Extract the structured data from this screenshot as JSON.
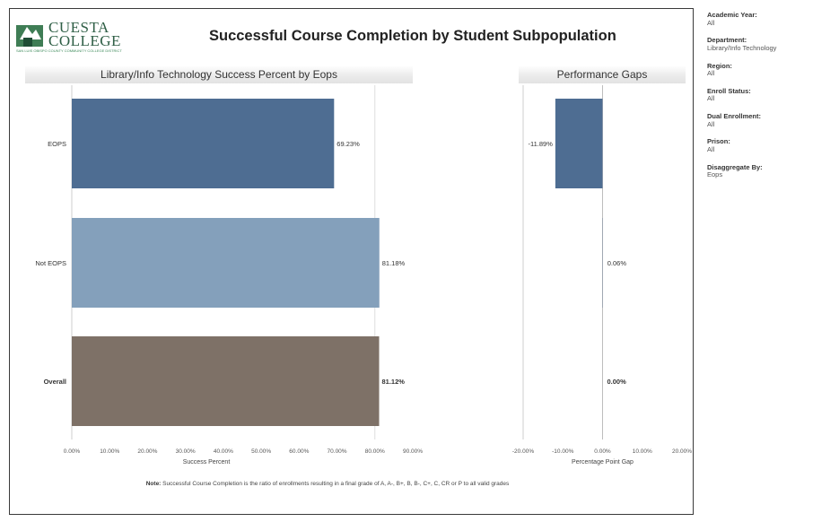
{
  "header": {
    "logo_line1": "CUESTA",
    "logo_line2": "COLLEGE",
    "logo_tagline": "SAN LUIS OBISPO COUNTY COMMUNITY COLLEGE DISTRICT",
    "title": "Successful Course Completion by Student Subpopulation"
  },
  "colors": {
    "eops": "#4e6d92",
    "not_eops": "#84a0bb",
    "overall": "#7e7167",
    "gap": "#4e6d92"
  },
  "chart_data": [
    {
      "type": "bar",
      "orientation": "horizontal",
      "title": "Library/Info Technology Success Percent by Eops",
      "categories": [
        "EOPS",
        "Not EOPS",
        "Overall"
      ],
      "values": [
        69.23,
        81.18,
        81.12
      ],
      "value_labels": [
        "69.23%",
        "81.18%",
        "81.12%"
      ],
      "xlabel": "Success Percent",
      "xlim": [
        0,
        90
      ],
      "ticks": [
        0,
        10,
        20,
        30,
        40,
        50,
        60,
        70,
        80,
        90
      ],
      "tick_labels": [
        "0.00%",
        "10.00%",
        "20.00%",
        "30.00%",
        "40.00%",
        "50.00%",
        "60.00%",
        "70.00%",
        "80.00%",
        "90.00%"
      ]
    },
    {
      "type": "bar",
      "orientation": "horizontal",
      "title": "Performance Gaps",
      "categories": [
        "EOPS",
        "Not EOPS",
        "Overall"
      ],
      "values": [
        -11.89,
        0.06,
        0.0
      ],
      "value_labels": [
        "-11.89%",
        "0.06%",
        "0.00%"
      ],
      "xlabel": "Percentage Point Gap",
      "xlim": [
        -20,
        20
      ],
      "ticks": [
        -20,
        -10,
        0,
        10,
        20
      ],
      "tick_labels": [
        "-20.00%",
        "-10.00%",
        "0.00%",
        "10.00%",
        "20.00%"
      ]
    }
  ],
  "note": {
    "prefix": "Note:",
    "text": "Successful Course Completion is the ratio of enrollments resulting in a final grade of A, A-, B+, B, B-, C+, C, CR or P to all valid grades"
  },
  "filters": [
    {
      "label": "Academic Year:",
      "value": "All"
    },
    {
      "label": "Department:",
      "value": "Library/Info Technology"
    },
    {
      "label": "Region:",
      "value": "All"
    },
    {
      "label": "Enroll Status:",
      "value": "All"
    },
    {
      "label": "Dual Enrollment:",
      "value": "All"
    },
    {
      "label": "Prison:",
      "value": "All"
    },
    {
      "label": "Disaggregate By:",
      "value": "Eops"
    }
  ]
}
